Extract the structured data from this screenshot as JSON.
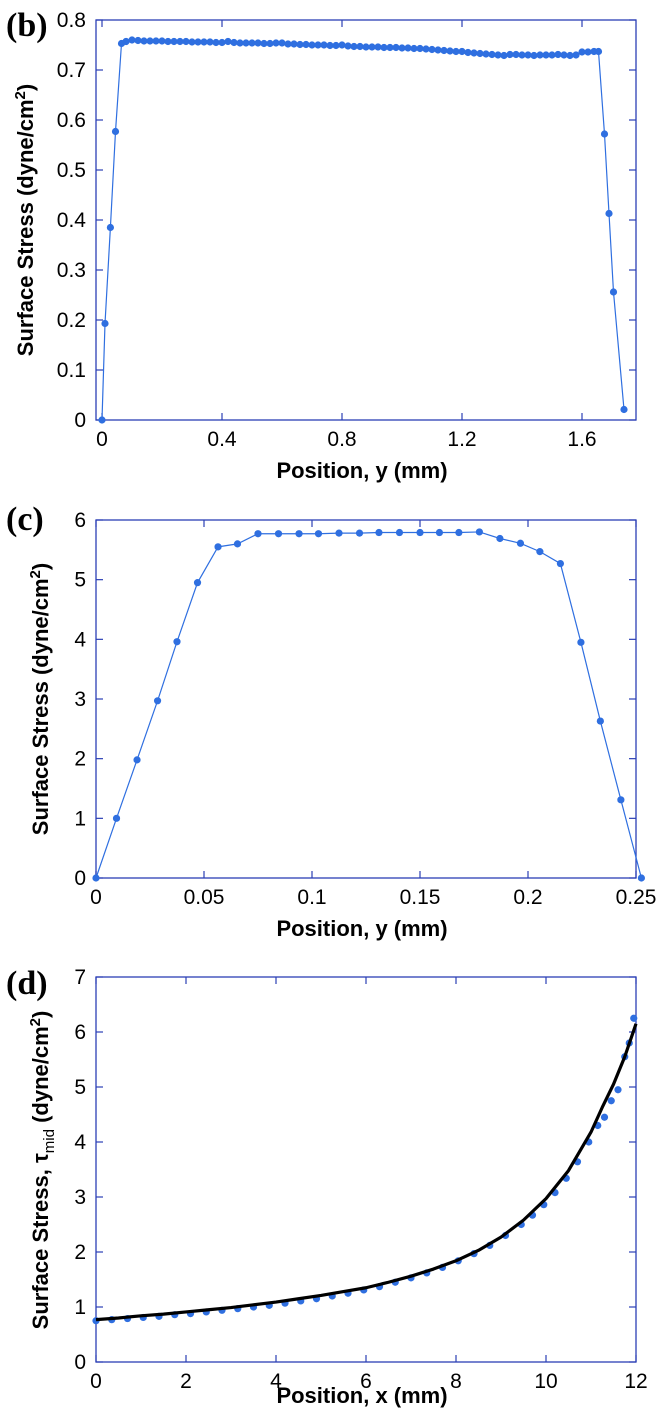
{
  "chart_data": [
    {
      "panel": "(b)",
      "type": "line",
      "xlabel": "Position, y (mm)",
      "ylabel": [
        "Surface Stress (dyne/cm",
        "2",
        ")"
      ],
      "xlim": [
        -0.02,
        1.78
      ],
      "ylim": [
        0,
        0.8
      ],
      "xticks": [
        0,
        0.4,
        0.8,
        1.2,
        1.6
      ],
      "xtick_labels": [
        "0",
        "0.4",
        "0.8",
        "1.2",
        "1.6"
      ],
      "yticks": [
        0,
        0.1,
        0.2,
        0.3,
        0.4,
        0.5,
        0.6,
        0.7,
        0.8
      ],
      "ytick_labels": [
        "0",
        "0.1",
        "0.2",
        "0.3",
        "0.4",
        "0.5",
        "0.6",
        "0.7",
        "0.8"
      ],
      "grid": false,
      "colors": {
        "points": "#2f6fe0",
        "line": "#2f6fe0"
      },
      "series": [
        {
          "x": [
            0,
            0.01,
            0.028,
            0.045,
            0.065,
            0.08,
            0.1,
            0.12,
            0.14,
            0.16,
            0.18,
            0.2,
            0.22,
            0.24,
            0.26,
            0.28,
            0.3,
            0.32,
            0.34,
            0.36,
            0.38,
            0.4,
            0.42,
            0.44,
            0.46,
            0.48,
            0.5,
            0.52,
            0.54,
            0.56,
            0.58,
            0.6,
            0.62,
            0.64,
            0.66,
            0.68,
            0.7,
            0.72,
            0.74,
            0.76,
            0.78,
            0.8,
            0.82,
            0.84,
            0.86,
            0.88,
            0.9,
            0.92,
            0.94,
            0.96,
            0.98,
            1.0,
            1.02,
            1.04,
            1.06,
            1.08,
            1.1,
            1.12,
            1.14,
            1.16,
            1.18,
            1.2,
            1.22,
            1.24,
            1.26,
            1.28,
            1.3,
            1.32,
            1.34,
            1.36,
            1.38,
            1.4,
            1.42,
            1.44,
            1.46,
            1.48,
            1.5,
            1.52,
            1.54,
            1.56,
            1.58,
            1.6,
            1.62,
            1.64,
            1.655,
            1.675,
            1.69,
            1.705,
            1.74
          ],
          "y": [
            0,
            0.193,
            0.385,
            0.577,
            0.753,
            0.757,
            0.76,
            0.759,
            0.758,
            0.758,
            0.758,
            0.758,
            0.757,
            0.757,
            0.757,
            0.757,
            0.756,
            0.756,
            0.756,
            0.756,
            0.755,
            0.755,
            0.757,
            0.755,
            0.754,
            0.754,
            0.754,
            0.754,
            0.753,
            0.753,
            0.754,
            0.754,
            0.752,
            0.752,
            0.751,
            0.751,
            0.75,
            0.75,
            0.75,
            0.749,
            0.749,
            0.75,
            0.748,
            0.747,
            0.747,
            0.746,
            0.746,
            0.746,
            0.745,
            0.745,
            0.745,
            0.744,
            0.744,
            0.743,
            0.743,
            0.742,
            0.741,
            0.74,
            0.739,
            0.738,
            0.737,
            0.737,
            0.735,
            0.734,
            0.733,
            0.732,
            0.731,
            0.73,
            0.729,
            0.731,
            0.731,
            0.73,
            0.73,
            0.729,
            0.73,
            0.73,
            0.73,
            0.731,
            0.73,
            0.729,
            0.73,
            0.736,
            0.736,
            0.737,
            0.737,
            0.572,
            0.413,
            0.256,
            0.021
          ]
        }
      ]
    },
    {
      "panel": "(c)",
      "type": "line",
      "xlabel": "Position, y (mm)",
      "ylabel": [
        "Surface Stress (dyne/cm",
        "2",
        ")"
      ],
      "xlim": [
        0,
        0.25
      ],
      "ylim": [
        0,
        6
      ],
      "xticks": [
        0,
        0.05,
        0.1,
        0.15,
        0.2,
        0.25
      ],
      "xtick_labels": [
        "0",
        "0.05",
        "0.1",
        "0.15",
        "0.2",
        "0.25"
      ],
      "yticks": [
        0,
        1,
        2,
        3,
        4,
        5,
        6
      ],
      "ytick_labels": [
        "0",
        "1",
        "2",
        "3",
        "4",
        "5",
        "6"
      ],
      "grid": false,
      "colors": {
        "points": "#2f6fe0",
        "line": "#2f6fe0"
      },
      "series": [
        {
          "x": [
            0,
            0.0095,
            0.019,
            0.0285,
            0.0375,
            0.047,
            0.0565,
            0.0655,
            0.075,
            0.0845,
            0.094,
            0.103,
            0.1125,
            0.122,
            0.131,
            0.1405,
            0.15,
            0.159,
            0.168,
            0.1775,
            0.187,
            0.1965,
            0.2055,
            0.215,
            0.2245,
            0.2335,
            0.243,
            0.2525
          ],
          "y": [
            0,
            1.0,
            1.98,
            2.97,
            3.96,
            4.95,
            5.55,
            5.6,
            5.77,
            5.77,
            5.77,
            5.77,
            5.78,
            5.78,
            5.79,
            5.79,
            5.79,
            5.79,
            5.79,
            5.8,
            5.69,
            5.61,
            5.47,
            5.27,
            3.95,
            2.63,
            1.31,
            0
          ]
        }
      ]
    },
    {
      "panel": "(d)",
      "type": "line",
      "xlabel": "Position, x (mm)",
      "ylabel": [
        "Surface Stress, τ",
        "mid",
        " (dyne/cm",
        "2",
        ")"
      ],
      "xlim": [
        0,
        12
      ],
      "ylim": [
        0,
        7
      ],
      "xticks": [
        0,
        2,
        4,
        6,
        8,
        10,
        12
      ],
      "xtick_labels": [
        "0",
        "2",
        "4",
        "6",
        "8",
        "10",
        "12"
      ],
      "yticks": [
        0,
        1,
        2,
        3,
        4,
        5,
        6,
        7
      ],
      "ytick_labels": [
        "0",
        "1",
        "2",
        "3",
        "4",
        "5",
        "6",
        "7"
      ],
      "grid": false,
      "colors": {
        "points": "#2f6fe0",
        "curve": "#000000"
      },
      "series": [
        {
          "style": "scatter",
          "x": [
            0,
            0.35,
            0.7,
            1.05,
            1.4,
            1.75,
            2.1,
            2.45,
            2.8,
            3.15,
            3.5,
            3.85,
            4.2,
            4.55,
            4.9,
            5.25,
            5.6,
            5.95,
            6.3,
            6.65,
            7.0,
            7.35,
            7.7,
            8.05,
            8.4,
            8.75,
            9.1,
            9.45,
            9.7,
            9.95,
            10.2,
            10.45,
            10.7,
            10.95,
            11.15,
            11.3,
            11.45,
            11.6,
            11.75,
            11.85,
            11.95
          ],
          "y": [
            0.75,
            0.77,
            0.79,
            0.81,
            0.83,
            0.86,
            0.88,
            0.91,
            0.94,
            0.97,
            1.0,
            1.03,
            1.07,
            1.11,
            1.15,
            1.2,
            1.25,
            1.31,
            1.37,
            1.45,
            1.53,
            1.62,
            1.72,
            1.84,
            1.97,
            2.12,
            2.3,
            2.5,
            2.67,
            2.86,
            3.08,
            3.34,
            3.64,
            4.0,
            4.3,
            4.45,
            4.75,
            4.95,
            5.55,
            5.8,
            6.25
          ]
        },
        {
          "style": "line",
          "x": [
            0,
            0.5,
            1,
            1.5,
            2,
            2.5,
            3,
            3.5,
            4,
            4.5,
            5,
            5.5,
            6,
            6.5,
            7,
            7.5,
            8,
            8.5,
            9,
            9.5,
            10,
            10.5,
            11,
            11.25,
            11.5,
            11.75,
            12
          ],
          "y": [
            0.77,
            0.8,
            0.84,
            0.87,
            0.91,
            0.95,
            0.99,
            1.04,
            1.09,
            1.15,
            1.21,
            1.28,
            1.35,
            1.45,
            1.56,
            1.69,
            1.84,
            2.03,
            2.27,
            2.58,
            2.97,
            3.48,
            4.18,
            4.63,
            5.05,
            5.55,
            6.15
          ]
        }
      ]
    }
  ]
}
